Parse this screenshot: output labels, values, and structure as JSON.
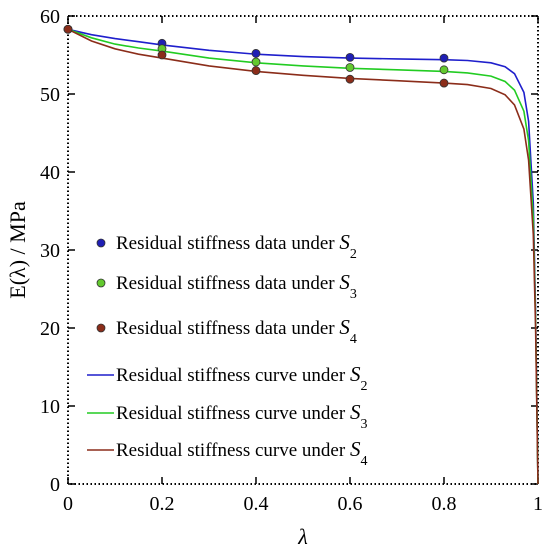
{
  "chart_data": {
    "type": "scatter",
    "xlabel": "λ",
    "ylabel": "E(λ) / MPa",
    "xlim": [
      0,
      1
    ],
    "ylim": [
      0,
      60
    ],
    "x_ticks": [
      0,
      0.2,
      0.4,
      0.6,
      0.8,
      1
    ],
    "x_tick_labels": [
      "0",
      "0.2",
      "0.4",
      "0.6",
      "0.8",
      "1"
    ],
    "y_ticks": [
      0,
      10,
      20,
      30,
      40,
      50,
      60
    ],
    "y_tick_labels": [
      "0",
      "10",
      "20",
      "30",
      "40",
      "50",
      "60"
    ],
    "grid": false,
    "frame": "dotted",
    "legend_position": "center-left",
    "series": [
      {
        "kind": "data",
        "name": "Residual stiffness data under S",
        "subscript": "2",
        "color": "#1f1fb4",
        "x": [
          0,
          0.2,
          0.4,
          0.6,
          0.8
        ],
        "y": [
          58.3,
          56.5,
          55.2,
          54.7,
          54.6
        ]
      },
      {
        "kind": "data",
        "name": "Residual stiffness data under S",
        "subscript": "3",
        "color": "#63c92f",
        "x": [
          0,
          0.2,
          0.4,
          0.6,
          0.8
        ],
        "y": [
          58.3,
          55.8,
          54.1,
          53.4,
          53.1
        ]
      },
      {
        "kind": "data",
        "name": "Residual stiffness data under S",
        "subscript": "4",
        "color": "#8b2d1a",
        "x": [
          0,
          0.2,
          0.4,
          0.6,
          0.8
        ],
        "y": [
          58.3,
          55.0,
          53.0,
          51.9,
          51.4
        ]
      },
      {
        "kind": "curve",
        "name": "Residual stiffness curve under S",
        "subscript": "2",
        "color": "#1f1fcc",
        "x": [
          0,
          0.05,
          0.1,
          0.15,
          0.2,
          0.3,
          0.4,
          0.5,
          0.6,
          0.7,
          0.8,
          0.85,
          0.9,
          0.93,
          0.95,
          0.97,
          0.98,
          0.99,
          0.995,
          1
        ],
        "y": [
          58.3,
          57.6,
          57.1,
          56.7,
          56.3,
          55.6,
          55.1,
          54.8,
          54.6,
          54.5,
          54.4,
          54.3,
          54.0,
          53.5,
          52.6,
          50.2,
          46.5,
          36.0,
          22.0,
          0
        ]
      },
      {
        "kind": "curve",
        "name": "Residual stiffness curve under S",
        "subscript": "3",
        "color": "#22cc22",
        "x": [
          0,
          0.05,
          0.1,
          0.15,
          0.2,
          0.3,
          0.4,
          0.5,
          0.6,
          0.7,
          0.8,
          0.85,
          0.9,
          0.93,
          0.95,
          0.97,
          0.98,
          0.99,
          0.995,
          1
        ],
        "y": [
          58.3,
          57.2,
          56.4,
          55.9,
          55.5,
          54.6,
          54.0,
          53.6,
          53.3,
          53.1,
          52.9,
          52.7,
          52.3,
          51.6,
          50.5,
          47.8,
          44.0,
          34.0,
          21.0,
          0
        ]
      },
      {
        "kind": "curve",
        "name": "Residual stiffness curve under S",
        "subscript": "4",
        "color": "#8b2d1a",
        "x": [
          0,
          0.05,
          0.1,
          0.15,
          0.2,
          0.3,
          0.4,
          0.5,
          0.6,
          0.7,
          0.8,
          0.85,
          0.9,
          0.93,
          0.95,
          0.97,
          0.98,
          0.99,
          0.995,
          1
        ],
        "y": [
          58.3,
          56.8,
          55.8,
          55.1,
          54.6,
          53.6,
          52.9,
          52.4,
          52.0,
          51.7,
          51.4,
          51.2,
          50.7,
          49.9,
          48.6,
          45.5,
          41.5,
          32.0,
          20.0,
          0
        ]
      }
    ]
  }
}
